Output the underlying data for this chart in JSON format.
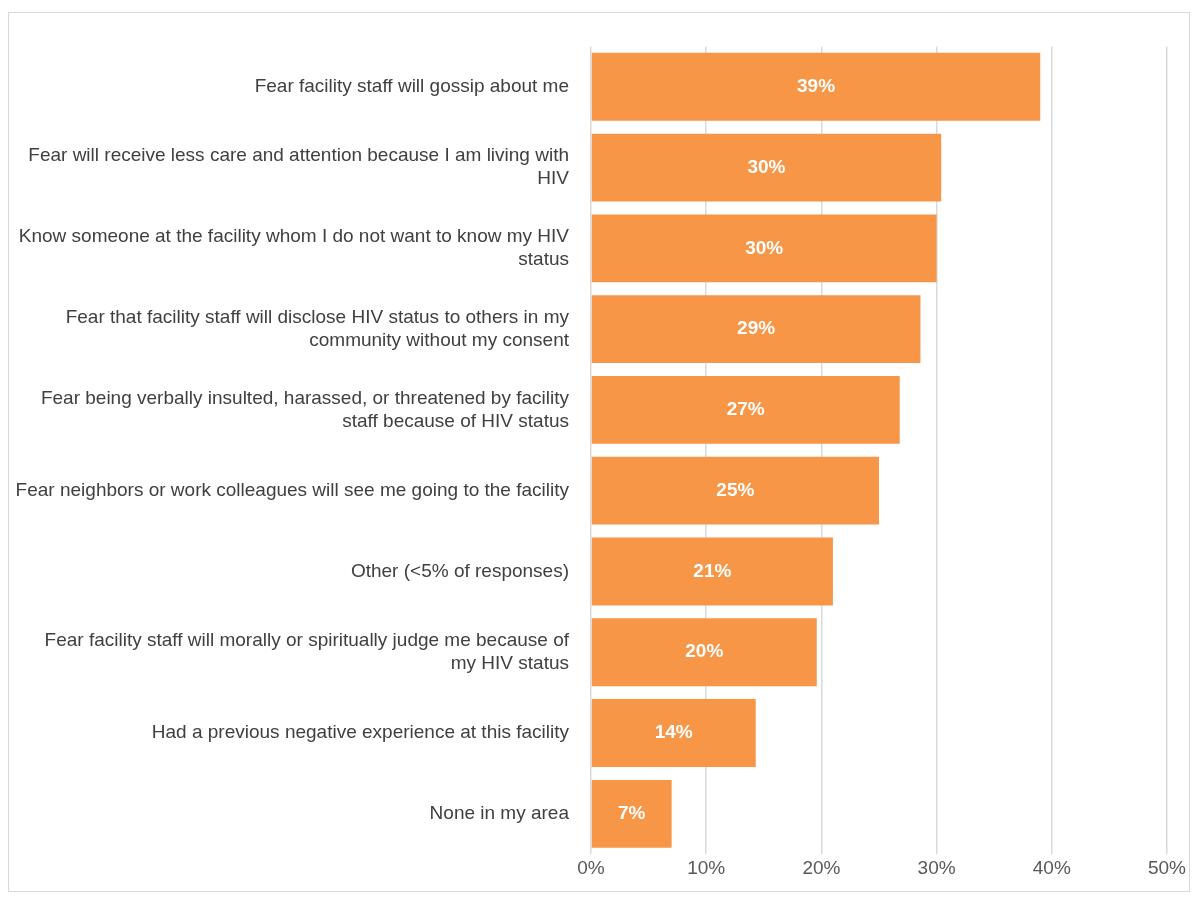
{
  "chart_data": {
    "type": "bar",
    "orientation": "horizontal",
    "categories": [
      "Fear facility staff will gossip about me",
      "Fear will receive less care and attention because I am living with HIV",
      "Know someone at the facility whom I do not want to know my HIV status",
      "Fear that facility staff will disclose HIV status to others in my community without my consent",
      "Fear being verbally insulted, harassed, or threatened by facility staff because of HIV status",
      "Fear neighbors or work colleagues will see me going to the facility",
      "Other (<5% of responses)",
      "Fear facility staff will morally or spiritually judge me because of my HIV status",
      "Had a previous negative experience at this facility",
      "None in my area"
    ],
    "values": [
      39,
      30.4,
      30,
      28.6,
      26.8,
      25,
      21,
      19.6,
      14.3,
      7
    ],
    "value_labels": [
      "39%",
      "30%",
      "30%",
      "29%",
      "27%",
      "25%",
      "21%",
      "20%",
      "14%",
      "7%"
    ],
    "color": "#f79646",
    "xlim": [
      0,
      50
    ],
    "xticks": [
      {
        "value": 0,
        "label": "0%"
      },
      {
        "value": 10,
        "label": "10%"
      },
      {
        "value": 20,
        "label": "20%"
      },
      {
        "value": 30,
        "label": "30%"
      },
      {
        "value": 40,
        "label": "40%"
      },
      {
        "value": 50,
        "label": "50%"
      }
    ],
    "grid": "x",
    "legend": false
  }
}
